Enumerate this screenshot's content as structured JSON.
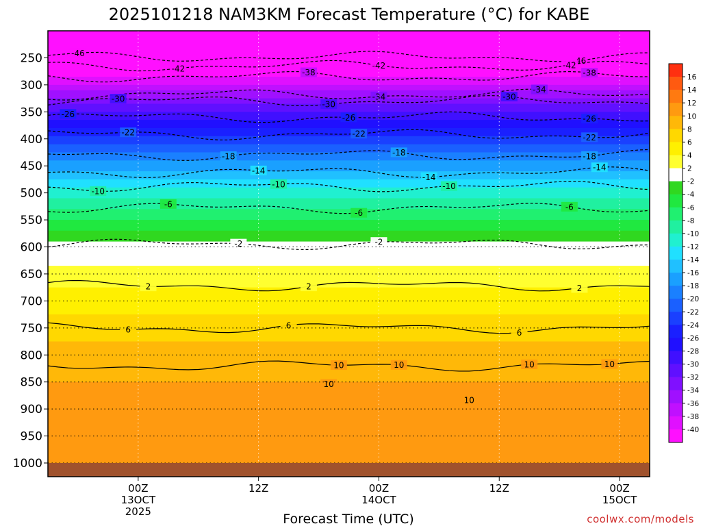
{
  "chart_data": {
    "type": "heatmap",
    "title": "2025101218 NAM3KM Forecast Temperature (°C) for KABE",
    "xlabel": "Forecast Time (UTC)",
    "ylabel": "",
    "credit": "coolwx.com/models",
    "y_axis": {
      "units": "hPa",
      "range": [
        200,
        1000
      ],
      "ticks": [
        "250",
        "300",
        "350",
        "400",
        "450",
        "500",
        "550",
        "600",
        "650",
        "700",
        "750",
        "800",
        "850",
        "900",
        "950",
        "1000"
      ],
      "tick_values": [
        250,
        300,
        350,
        400,
        450,
        500,
        550,
        600,
        650,
        700,
        750,
        800,
        850,
        900,
        950,
        1000
      ]
    },
    "x_axis": {
      "range_hours": [
        -9,
        51
      ],
      "ticks": [
        {
          "hour": 0,
          "lines": [
            "00Z",
            "13OCT",
            "2025"
          ]
        },
        {
          "hour": 12,
          "lines": [
            "12Z"
          ]
        },
        {
          "hour": 24,
          "lines": [
            "00Z",
            "14OCT"
          ]
        },
        {
          "hour": 36,
          "lines": [
            "12Z"
          ]
        },
        {
          "hour": 48,
          "lines": [
            "00Z",
            "15OCT"
          ]
        }
      ]
    },
    "colorbar": {
      "labels": [
        "16",
        "14",
        "12",
        "10",
        "8",
        "6",
        "4",
        "2",
        "-2",
        "-4",
        "-6",
        "-8",
        "-10",
        "-12",
        "-14",
        "-16",
        "-18",
        "-20",
        "-22",
        "-24",
        "-26",
        "-28",
        "-30",
        "-32",
        "-34",
        "-36",
        "-38",
        "-40"
      ],
      "colors": [
        "#ff3010",
        "#ff5a10",
        "#ff7a10",
        "#ff9a10",
        "#ffb808",
        "#ffd800",
        "#fff000",
        "#ffff30",
        "#ffffff",
        "#30d820",
        "#20e840",
        "#20f070",
        "#20f0a0",
        "#20f0d0",
        "#20e0ff",
        "#20c0ff",
        "#1aa0ff",
        "#1a80ff",
        "#1a60ff",
        "#1a40ff",
        "#1a20ff",
        "#2010ff",
        "#4010ff",
        "#6010ff",
        "#8010ff",
        "#a010ff",
        "#c010ff",
        "#e010ff",
        "#ff10ff"
      ]
    },
    "levels": [
      200,
      250,
      300,
      350,
      400,
      450,
      500,
      550,
      600,
      650,
      700,
      750,
      800,
      850,
      900,
      950,
      1000
    ],
    "temps": [
      -48,
      -44,
      -38,
      -30,
      -23,
      -17,
      -11,
      -6,
      -1,
      3,
      5,
      7,
      9,
      10,
      10,
      11,
      11
    ],
    "contours": [
      {
        "value": -46,
        "p": 248,
        "labels": [
          {
            "text": "-46",
            "h": -6
          },
          {
            "text": "-46",
            "h": 44
          }
        ]
      },
      {
        "value": -42,
        "p": 265,
        "labels": [
          {
            "text": "-42",
            "h": 4
          },
          {
            "text": "-42",
            "h": 24
          },
          {
            "text": "-42",
            "h": 43
          }
        ]
      },
      {
        "value": -38,
        "p": 285,
        "labels": [
          {
            "text": "-38",
            "h": 17
          },
          {
            "text": "-38",
            "h": 45
          }
        ]
      },
      {
        "value": -34,
        "p": 318,
        "labels": [
          {
            "text": "-34",
            "h": 24
          },
          {
            "text": "-34",
            "h": 40
          }
        ]
      },
      {
        "value": -30,
        "p": 330,
        "labels": [
          {
            "text": "-30",
            "h": -2
          },
          {
            "text": "-30",
            "h": 19
          },
          {
            "text": "-30",
            "h": 37
          }
        ]
      },
      {
        "value": -26,
        "p": 360,
        "labels": [
          {
            "text": "-26",
            "h": -7
          },
          {
            "text": "-26",
            "h": 21
          },
          {
            "text": "-26",
            "h": 45
          }
        ]
      },
      {
        "value": -22,
        "p": 392,
        "labels": [
          {
            "text": "-22",
            "h": -1
          },
          {
            "text": "-22",
            "h": 22
          },
          {
            "text": "-22",
            "h": 45
          }
        ]
      },
      {
        "value": -18,
        "p": 430,
        "labels": [
          {
            "text": "-18",
            "h": 9
          },
          {
            "text": "-18",
            "h": 26
          },
          {
            "text": "-18",
            "h": 45
          }
        ]
      },
      {
        "value": -14,
        "p": 462,
        "labels": [
          {
            "text": "-14",
            "h": 12
          },
          {
            "text": "-14",
            "h": 29
          },
          {
            "text": "-14",
            "h": 46
          }
        ]
      },
      {
        "value": -10,
        "p": 488,
        "labels": [
          {
            "text": "-10",
            "h": -4
          },
          {
            "text": "-10",
            "h": 14
          },
          {
            "text": "-10",
            "h": 31
          }
        ]
      },
      {
        "value": -6,
        "p": 528,
        "labels": [
          {
            "text": "-6",
            "h": 3
          },
          {
            "text": "-6",
            "h": 22
          },
          {
            "text": "-6",
            "h": 43
          }
        ]
      },
      {
        "value": -2,
        "p": 595,
        "labels": [
          {
            "text": "-2",
            "h": 10
          },
          {
            "text": "-2",
            "h": 24
          }
        ]
      },
      {
        "value": 2,
        "p": 672,
        "labels": [
          {
            "text": "2",
            "h": 1
          },
          {
            "text": "2",
            "h": 17
          },
          {
            "text": "2",
            "h": 44
          }
        ]
      },
      {
        "value": 6,
        "p": 750,
        "labels": [
          {
            "text": "6",
            "h": -1
          },
          {
            "text": "6",
            "h": 15
          },
          {
            "text": "6",
            "h": 38
          }
        ]
      },
      {
        "value": 10,
        "p": 820,
        "labels": [
          {
            "text": "10",
            "h": 20
          },
          {
            "text": "10",
            "h": 26
          },
          {
            "text": "10",
            "h": 39
          },
          {
            "text": "10",
            "h": 47
          },
          {
            "text": "10",
            "h": 19
          },
          {
            "text": "10",
            "h": 33
          }
        ]
      }
    ]
  }
}
